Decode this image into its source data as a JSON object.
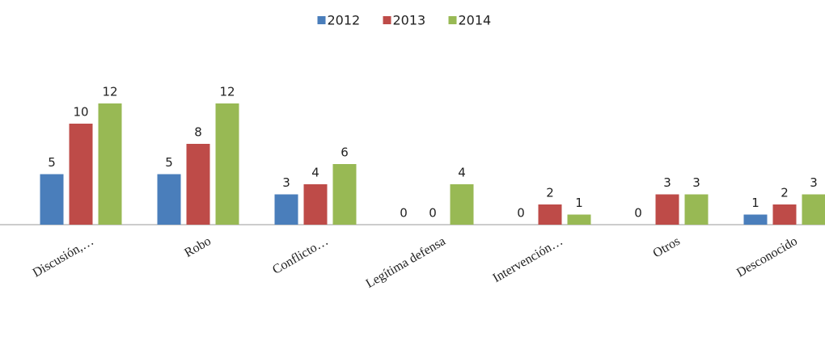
{
  "chart_data": {
    "type": "bar",
    "categories": [
      "Discusión,…",
      "Robo",
      "Conflicto…",
      "Legítima defensa",
      "Intervención…",
      "Otros",
      "Desconocido"
    ],
    "series": [
      {
        "name": "2012",
        "color": "#4a7ebb",
        "values": [
          5,
          5,
          3,
          0,
          0,
          0,
          1
        ]
      },
      {
        "name": "2013",
        "color": "#be4b48",
        "values": [
          10,
          8,
          4,
          0,
          2,
          3,
          2
        ]
      },
      {
        "name": "2014",
        "color": "#98b954",
        "values": [
          12,
          12,
          6,
          4,
          1,
          3,
          3
        ]
      }
    ],
    "legend": "top"
  }
}
